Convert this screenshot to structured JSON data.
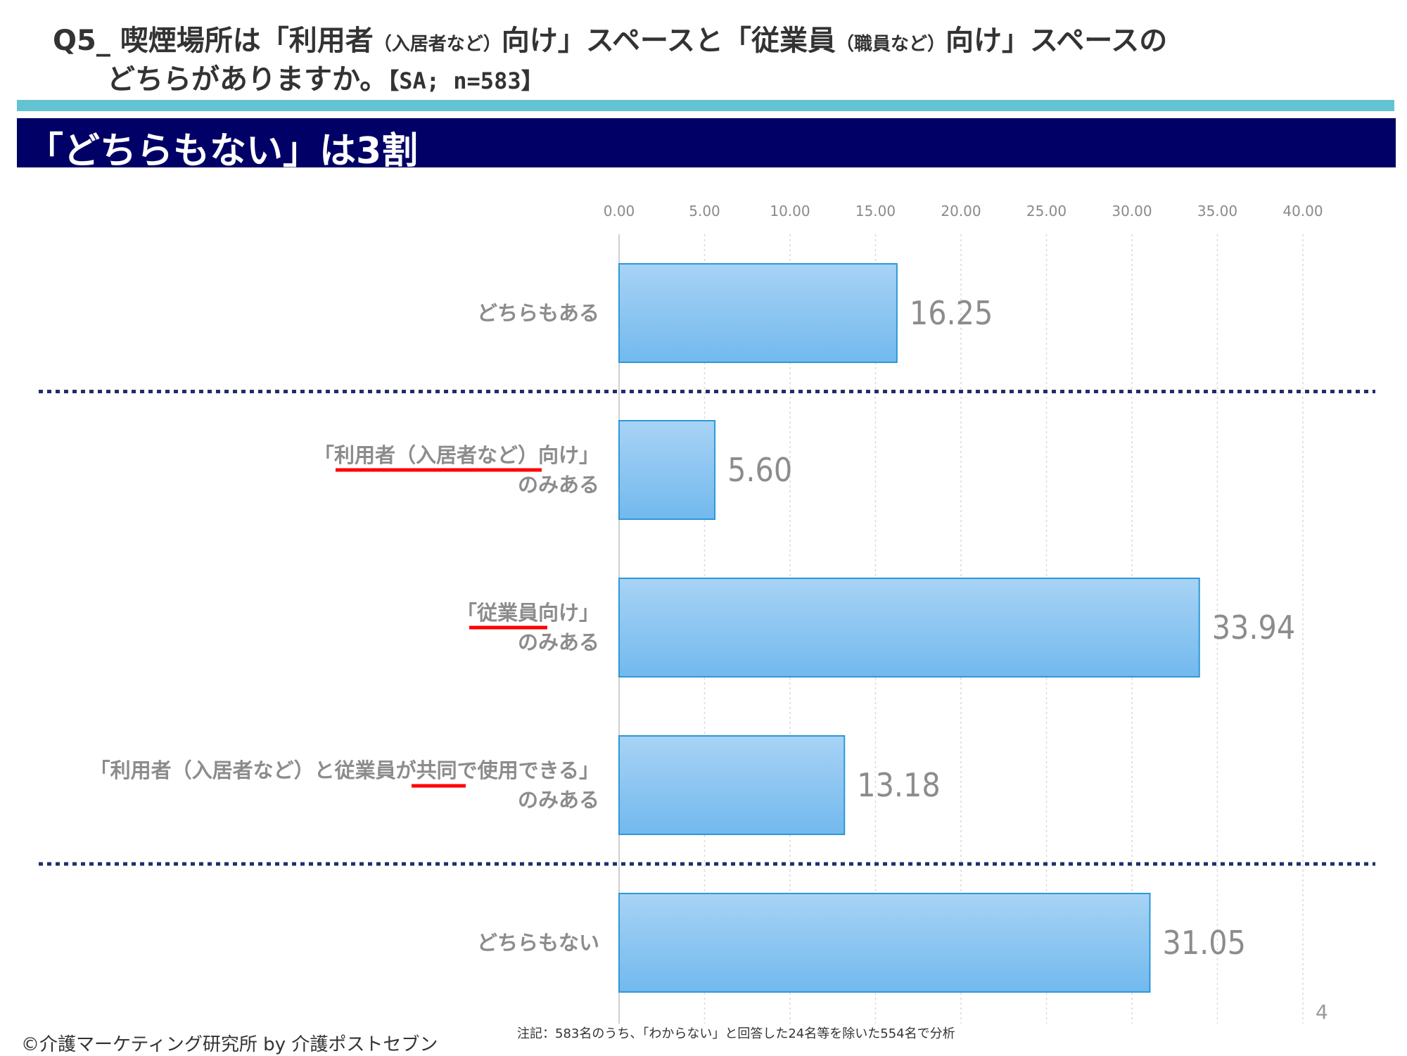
{
  "header": {
    "q_part1": "Q5_ 喫煙場所は「利用者",
    "q_part1_small": "（入居者など）",
    "q_part2": "向け」スペースと「従業員",
    "q_part2_small": "（職員など）",
    "q_part3": "向け」スペースの",
    "q_line2": "どちらがありますか。",
    "q_sample": "【SA; n=583】",
    "headline": "「どちらもない」は3割"
  },
  "colors": {
    "stripe": "#62C3D2",
    "banner": "#000066",
    "bar_top": "#A8D3F5",
    "bar_bottom": "#72B9EE",
    "bar_border": "#2E98D6",
    "separator": "#1F2D6B",
    "underline": "#FF0000"
  },
  "chart_data": {
    "type": "bar",
    "orientation": "horizontal",
    "categories": [
      [
        "どちらもある"
      ],
      [
        "「利用者（入居者など）向け」",
        "のみある"
      ],
      [
        "「従業員向け」",
        "のみある"
      ],
      [
        "「利用者（入居者など）と従業員が共同で使用できる」",
        "のみある"
      ],
      [
        "どちらもない"
      ]
    ],
    "values": [
      16.25,
      5.6,
      33.94,
      13.18,
      31.05
    ],
    "value_labels": [
      "16.25",
      "5.60",
      "33.94",
      "13.18",
      "31.05"
    ],
    "ticks": [
      "0.00",
      "5.00",
      "10.00",
      "15.00",
      "20.00",
      "25.00",
      "30.00",
      "35.00",
      "40.00"
    ],
    "xlim": [
      0,
      40
    ],
    "grid": true,
    "separators_after_category_index": [
      0,
      3
    ],
    "underlined_terms": [
      "利用者（入居者など",
      "従業員",
      "共同"
    ]
  },
  "footer": {
    "copyright": "©介護マーケティング研究所 by 介護ポストセブン",
    "note": "注記：583名のうち、「わからない」と回答した24名等を除いた554名で分析",
    "page_number": "4"
  }
}
